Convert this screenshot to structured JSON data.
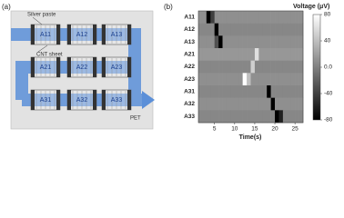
{
  "panel_a": {
    "label": "(a)",
    "annotations": {
      "silver_paste": "Silver paste",
      "cnt_sheet": "CNT sheet",
      "pet": "PET"
    },
    "devices": [
      [
        "A11",
        "A12",
        "A13"
      ],
      [
        "A21",
        "A22",
        "A23"
      ],
      [
        "A31",
        "A32",
        "A33"
      ]
    ]
  },
  "chart_data": {
    "type": "heatmap",
    "panel_label": "(b)",
    "xlabel": "Time(s)",
    "colorbar_label": "Voltage (μV)",
    "categories": [
      "A11",
      "A12",
      "A13",
      "A21",
      "A22",
      "A23",
      "A31",
      "A32",
      "A33"
    ],
    "x": [
      1,
      2,
      3,
      4,
      5,
      6,
      7,
      8,
      9,
      10,
      11,
      12,
      13,
      14,
      15,
      16,
      17,
      18,
      19,
      20,
      21,
      22,
      23,
      24,
      25,
      26,
      27
    ],
    "z": [
      [
        10,
        10,
        -80,
        -40,
        10,
        10,
        10,
        10,
        10,
        10,
        10,
        10,
        10,
        10,
        10,
        10,
        10,
        10,
        10,
        10,
        10,
        10,
        10,
        10,
        10,
        10
      ],
      [
        5,
        5,
        5,
        5,
        -80,
        5,
        5,
        5,
        5,
        5,
        5,
        5,
        5,
        5,
        5,
        5,
        5,
        5,
        5,
        5,
        5,
        5,
        5,
        5,
        5,
        5
      ],
      [
        10,
        10,
        10,
        10,
        -30,
        -80,
        10,
        10,
        10,
        10,
        10,
        10,
        10,
        10,
        10,
        10,
        10,
        10,
        10,
        10,
        10,
        10,
        10,
        10,
        10,
        10
      ],
      [
        15,
        15,
        15,
        15,
        15,
        15,
        15,
        15,
        15,
        15,
        15,
        15,
        15,
        15,
        60,
        15,
        15,
        15,
        15,
        15,
        15,
        15,
        15,
        15,
        15,
        15
      ],
      [
        5,
        5,
        5,
        5,
        5,
        5,
        5,
        5,
        5,
        5,
        5,
        5,
        5,
        50,
        5,
        5,
        5,
        5,
        5,
        5,
        5,
        5,
        5,
        5,
        5,
        5
      ],
      [
        10,
        10,
        10,
        10,
        10,
        10,
        10,
        10,
        10,
        10,
        10,
        80,
        40,
        10,
        10,
        10,
        10,
        10,
        10,
        10,
        10,
        10,
        10,
        10,
        10,
        10
      ],
      [
        5,
        5,
        5,
        5,
        5,
        5,
        5,
        5,
        5,
        5,
        5,
        5,
        5,
        5,
        5,
        5,
        5,
        -80,
        5,
        5,
        5,
        5,
        5,
        5,
        5,
        5
      ],
      [
        10,
        10,
        10,
        10,
        10,
        10,
        10,
        10,
        10,
        10,
        10,
        10,
        10,
        10,
        10,
        10,
        10,
        10,
        -80,
        10,
        10,
        10,
        10,
        10,
        10,
        10
      ],
      [
        5,
        5,
        5,
        5,
        5,
        5,
        5,
        5,
        5,
        5,
        5,
        5,
        5,
        5,
        5,
        5,
        5,
        5,
        5,
        -80,
        -60,
        5,
        5,
        5,
        5,
        5
      ]
    ],
    "xlim": [
      1,
      27
    ],
    "xticks": [
      5,
      10,
      15,
      20,
      25
    ],
    "zlim": [
      -80,
      80
    ],
    "zticks": [
      80,
      40,
      {
        "value": 0,
        "label": "0.0"
      },
      -40,
      -80
    ],
    "colormap": [
      "#000000",
      "#ffffff"
    ]
  }
}
